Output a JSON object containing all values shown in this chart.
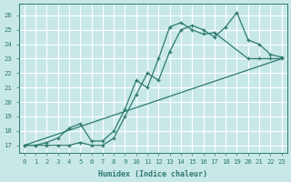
{
  "bg_color": "#c8e8e8",
  "grid_color": "#ffffff",
  "line_color": "#2d7a6e",
  "xlabel": "Humidex (Indice chaleur)",
  "ylim": [
    16.5,
    26.8
  ],
  "xlim": [
    -0.5,
    23.5
  ],
  "yticks": [
    17,
    18,
    19,
    20,
    21,
    22,
    23,
    24,
    25,
    26
  ],
  "xticks": [
    0,
    1,
    2,
    3,
    4,
    5,
    6,
    7,
    8,
    9,
    10,
    11,
    12,
    13,
    14,
    15,
    16,
    17,
    18,
    19,
    20,
    21,
    22,
    23
  ],
  "series": [
    {
      "x": [
        0,
        1,
        2,
        3,
        4,
        5,
        6,
        7,
        8,
        9,
        10,
        11,
        12,
        13,
        14,
        15,
        16,
        17,
        20,
        21,
        22,
        23
      ],
      "y": [
        17,
        17,
        17.2,
        17.5,
        18.2,
        18.5,
        17.3,
        17.3,
        18.0,
        19.5,
        21.5,
        21.0,
        23.0,
        25.2,
        25.5,
        25.0,
        24.7,
        24.8,
        23.0,
        23.0,
        23.0,
        23.0
      ],
      "marker": true
    },
    {
      "x": [
        0,
        1,
        2,
        3,
        4,
        5,
        6,
        7,
        8,
        9,
        10,
        11,
        12,
        13,
        14,
        15,
        16,
        17,
        18,
        19,
        20,
        21,
        22,
        23
      ],
      "y": [
        17,
        17,
        17,
        17,
        17,
        17.2,
        17.0,
        17,
        17.5,
        19.0,
        20.5,
        22.0,
        21.5,
        23.5,
        25.0,
        25.3,
        25.0,
        24.5,
        25.2,
        26.2,
        24.3,
        24.0,
        23.3,
        23.1
      ],
      "marker": true
    },
    {
      "x": [
        0,
        23
      ],
      "y": [
        17,
        23.0
      ],
      "marker": false
    }
  ]
}
